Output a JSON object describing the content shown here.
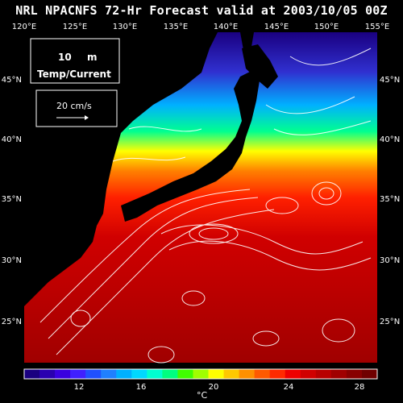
{
  "title": "NRL NPACNFS 72-Hr Forecast valid at 2003/10/05 00Z",
  "depth": {
    "value": "10",
    "unit": "m"
  },
  "field_label": "Temp/Current",
  "scale_vector": "20 cm/s",
  "lon_labels": [
    "120°E",
    "125°E",
    "130°E",
    "135°E",
    "140°E",
    "145°E",
    "150°E",
    "155°E"
  ],
  "lat_labels": [
    "45°N",
    "40°N",
    "35°N",
    "30°N",
    "25°N"
  ],
  "colorbar": {
    "unit": "°C",
    "tick_labels": [
      "12",
      "16",
      "20",
      "24",
      "28"
    ],
    "colors": [
      "#1a0080",
      "#2a00b0",
      "#3a00e0",
      "#4020ff",
      "#2050ff",
      "#2080ff",
      "#00b0ff",
      "#00d8ff",
      "#00ffd0",
      "#00ff80",
      "#40ff00",
      "#a0ff00",
      "#ffff00",
      "#ffc800",
      "#ff9000",
      "#ff5a00",
      "#ff2a00",
      "#ee0000",
      "#d00000",
      "#b80000",
      "#a00000",
      "#880000",
      "#700000"
    ]
  },
  "colors": {
    "land": "#000000",
    "warm": "#b00000",
    "cold": "#1a0080"
  }
}
